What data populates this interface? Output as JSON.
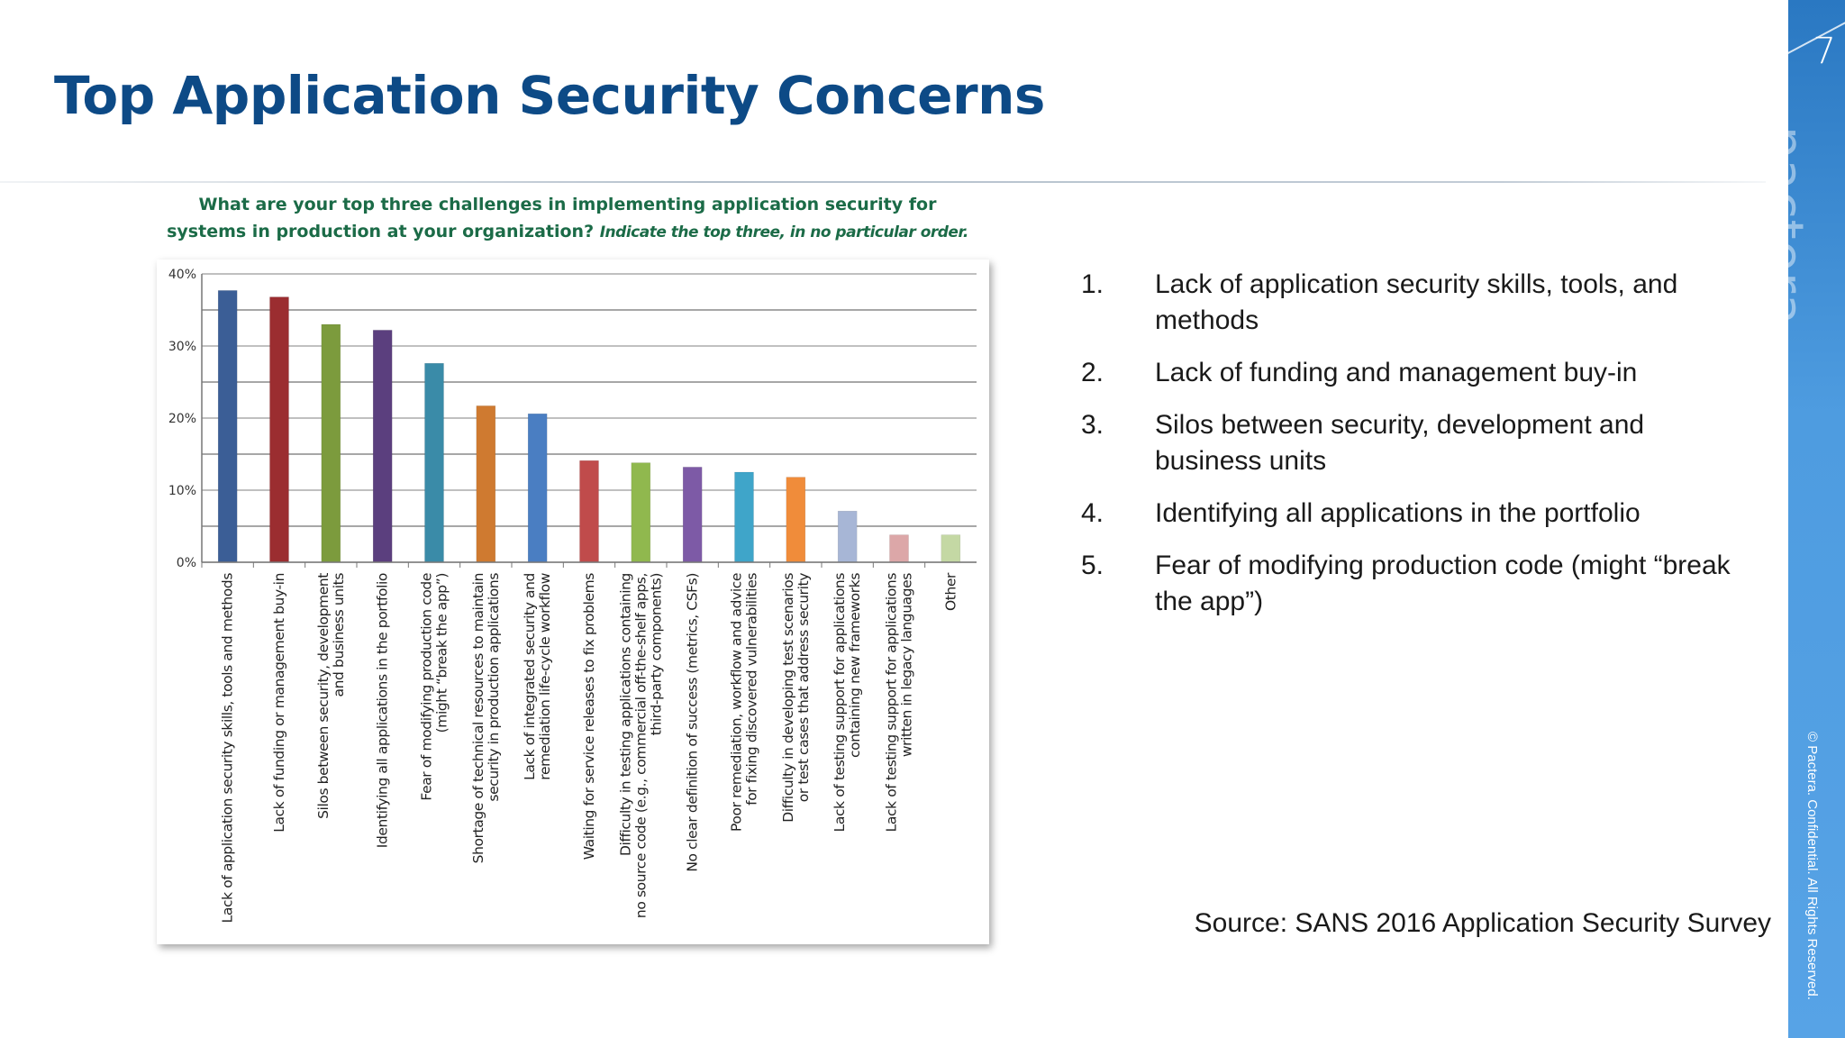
{
  "slide": {
    "title": "Top Application Security Concerns",
    "page_number": "7",
    "brand": "pactera",
    "copyright": "© Pactera. Confidential. All Rights Reserved.",
    "source": "Source: SANS 2016 Application Security Survey",
    "accent_color": "#0d4a86",
    "sidebar_color": "#3d8ad4"
  },
  "points": [
    {
      "num": "1.",
      "text": "Lack of application security skills, tools, and methods"
    },
    {
      "num": "2.",
      "text": "Lack of funding and management buy-in"
    },
    {
      "num": "3.",
      "text": "Silos between security, development and business units"
    },
    {
      "num": "4.",
      "text": "Identifying all applications in the portfolio"
    },
    {
      "num": "5.",
      "text": "Fear of modifying production code (might “break the app”)"
    }
  ],
  "chart_data": {
    "type": "bar",
    "title_main": "What are your top three challenges in implementing application security for systems in production at your organization?",
    "title_instruction": "Indicate the top three, in no particular order.",
    "ylim": [
      0,
      40
    ],
    "yticks": [
      "0%",
      "10%",
      "20%",
      "30%",
      "40%"
    ],
    "grid": true,
    "categories": [
      [
        "Lack of application security skills, tools and methods"
      ],
      [
        "Lack of funding or management buy-in"
      ],
      [
        "Silos between security, development",
        "and business units"
      ],
      [
        "Identifying all applications in the portfolio"
      ],
      [
        "Fear of modifying production code",
        "(might “break the app”)"
      ],
      [
        "Shortage of technical resources to maintain",
        "security in production applications"
      ],
      [
        "Lack of integrated security and",
        "remediation life-cycle workflow"
      ],
      [
        "Waiting for service releases to fix problems"
      ],
      [
        "Difficulty in testing applications containing",
        "no source code (e.g., commercial off-the-shelf apps,",
        "third-party components)"
      ],
      [
        "No clear definition of success (metrics, CSFs)"
      ],
      [
        "Poor remediation, workflow and advice",
        "for fixing discovered vulnerabilities"
      ],
      [
        "Difficulty in developing test scenarios",
        "or test cases that address security"
      ],
      [
        "Lack of testing support for applications",
        "containing new frameworks"
      ],
      [
        "Lack of testing support for applications",
        "written in legacy languages"
      ],
      [
        "Other"
      ]
    ],
    "values": [
      37.7,
      36.8,
      33.0,
      32.2,
      27.6,
      21.7,
      20.6,
      14.1,
      13.8,
      13.2,
      12.5,
      11.8,
      7.1,
      3.8,
      3.8
    ],
    "colors": [
      "#3b5e96",
      "#9b2d30",
      "#7c9b3d",
      "#5b3f7e",
      "#3a8ba8",
      "#cf7a30",
      "#4a7ec2",
      "#c04b4b",
      "#90b84e",
      "#7d5aa6",
      "#3fa5c9",
      "#f08c3a",
      "#a7b6d6",
      "#dca7a8",
      "#c4d8a4"
    ]
  }
}
